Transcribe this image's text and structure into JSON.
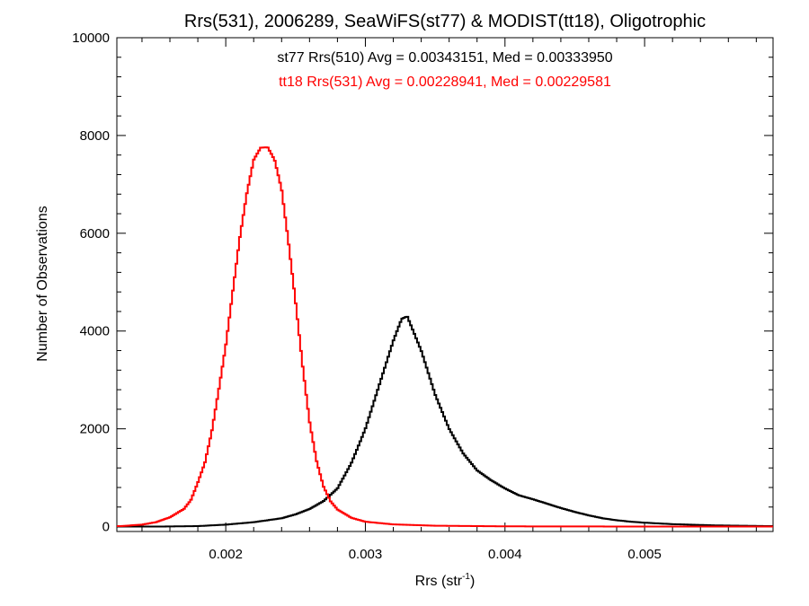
{
  "chart_data": {
    "type": "line",
    "title": "Rrs(531), 2006289, SeaWiFS(st77) & MODIST(tt18), Oligotrophic",
    "xlabel_main": "Rrs (str",
    "xlabel_sup": "-1",
    "xlabel_tail": ")",
    "ylabel": "Number of Observations",
    "xlim": [
      0.00122,
      0.00592
    ],
    "ylim": [
      -100,
      10000
    ],
    "x_ticks": [
      0.002,
      0.003,
      0.004,
      0.005
    ],
    "x_tick_labels": [
      "0.002",
      "0.003",
      "0.004",
      "0.005"
    ],
    "y_ticks": [
      0,
      2000,
      4000,
      6000,
      8000,
      10000
    ],
    "y_tick_labels": [
      "0",
      "2000",
      "4000",
      "6000",
      "8000",
      "10000"
    ],
    "grid": false,
    "annotations": [
      {
        "text": "st77 Rrs(510) Avg = 0.00343151, Med = 0.00333950",
        "color": "#000000"
      },
      {
        "text": "tt18 Rrs(531) Avg = 0.00228941, Med = 0.00229581",
        "color": "#ff0000"
      }
    ],
    "series": [
      {
        "color": "#000000",
        "points": [
          [
            0.00125,
            0
          ],
          [
            0.0015,
            0
          ],
          [
            0.0018,
            10
          ],
          [
            0.002,
            40
          ],
          [
            0.0022,
            90
          ],
          [
            0.0024,
            170
          ],
          [
            0.0025,
            250
          ],
          [
            0.0026,
            360
          ],
          [
            0.0027,
            520
          ],
          [
            0.0028,
            780
          ],
          [
            0.0029,
            1300
          ],
          [
            0.003,
            2000
          ],
          [
            0.0031,
            2900
          ],
          [
            0.0032,
            3800
          ],
          [
            0.00326,
            4250
          ],
          [
            0.0033,
            4300
          ],
          [
            0.0034,
            3600
          ],
          [
            0.0035,
            2700
          ],
          [
            0.0036,
            2000
          ],
          [
            0.0037,
            1500
          ],
          [
            0.0038,
            1150
          ],
          [
            0.0039,
            950
          ],
          [
            0.004,
            780
          ],
          [
            0.0041,
            640
          ],
          [
            0.0042,
            560
          ],
          [
            0.0043,
            470
          ],
          [
            0.0044,
            380
          ],
          [
            0.0045,
            300
          ],
          [
            0.0046,
            230
          ],
          [
            0.0047,
            170
          ],
          [
            0.0048,
            130
          ],
          [
            0.0049,
            100
          ],
          [
            0.005,
            80
          ],
          [
            0.0052,
            50
          ],
          [
            0.0055,
            25
          ],
          [
            0.00588,
            10
          ]
        ]
      },
      {
        "color": "#ff0000",
        "points": [
          [
            0.00125,
            10
          ],
          [
            0.0014,
            40
          ],
          [
            0.0015,
            90
          ],
          [
            0.0016,
            190
          ],
          [
            0.0017,
            360
          ],
          [
            0.00175,
            540
          ],
          [
            0.0018,
            900
          ],
          [
            0.00185,
            1300
          ],
          [
            0.0019,
            1950
          ],
          [
            0.00195,
            2800
          ],
          [
            0.002,
            3700
          ],
          [
            0.00205,
            4800
          ],
          [
            0.0021,
            5900
          ],
          [
            0.00215,
            6800
          ],
          [
            0.0022,
            7500
          ],
          [
            0.00225,
            7750
          ],
          [
            0.0023,
            7760
          ],
          [
            0.00235,
            7500
          ],
          [
            0.0024,
            6900
          ],
          [
            0.00245,
            5800
          ],
          [
            0.0025,
            4600
          ],
          [
            0.00255,
            3300
          ],
          [
            0.0026,
            2150
          ],
          [
            0.00265,
            1350
          ],
          [
            0.0027,
            820
          ],
          [
            0.00275,
            520
          ],
          [
            0.0028,
            350
          ],
          [
            0.0029,
            180
          ],
          [
            0.003,
            100
          ],
          [
            0.0032,
            45
          ],
          [
            0.0035,
            18
          ],
          [
            0.004,
            5
          ],
          [
            0.005,
            1
          ],
          [
            0.00588,
            0
          ]
        ]
      }
    ]
  }
}
